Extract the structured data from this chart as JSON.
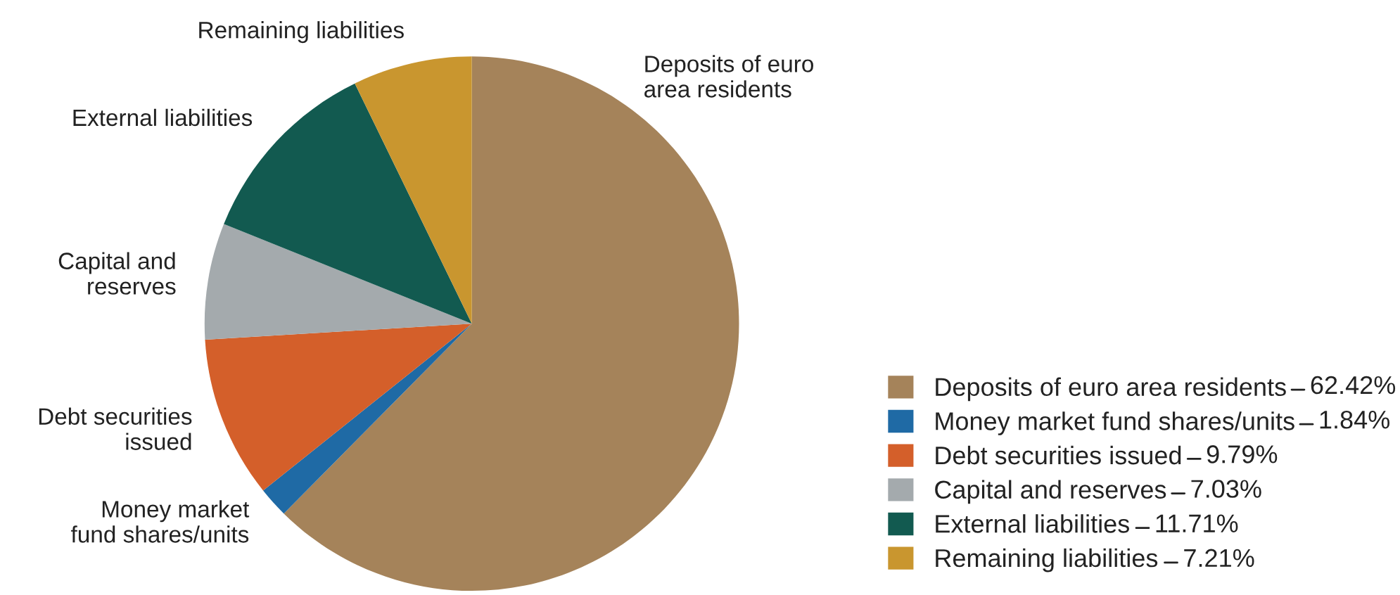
{
  "chart_data": {
    "type": "pie",
    "categories": [
      "Deposits of euro area residents",
      "Money market fund shares/units",
      "Debt securities issued",
      "Capital and reserves",
      "External liabilities",
      "Remaining liabilities"
    ],
    "values": [
      62.42,
      1.84,
      9.79,
      7.03,
      11.71,
      7.21
    ],
    "value_labels": [
      "62.42%",
      "1.84%",
      "9.79%",
      "7.03%",
      "11.71%",
      "7.21%"
    ],
    "colors": [
      "#a5835a",
      "#1f6aa5",
      "#d45f2a",
      "#a4aaad",
      "#125a50",
      "#c9962f"
    ],
    "legend": "bottom right"
  }
}
